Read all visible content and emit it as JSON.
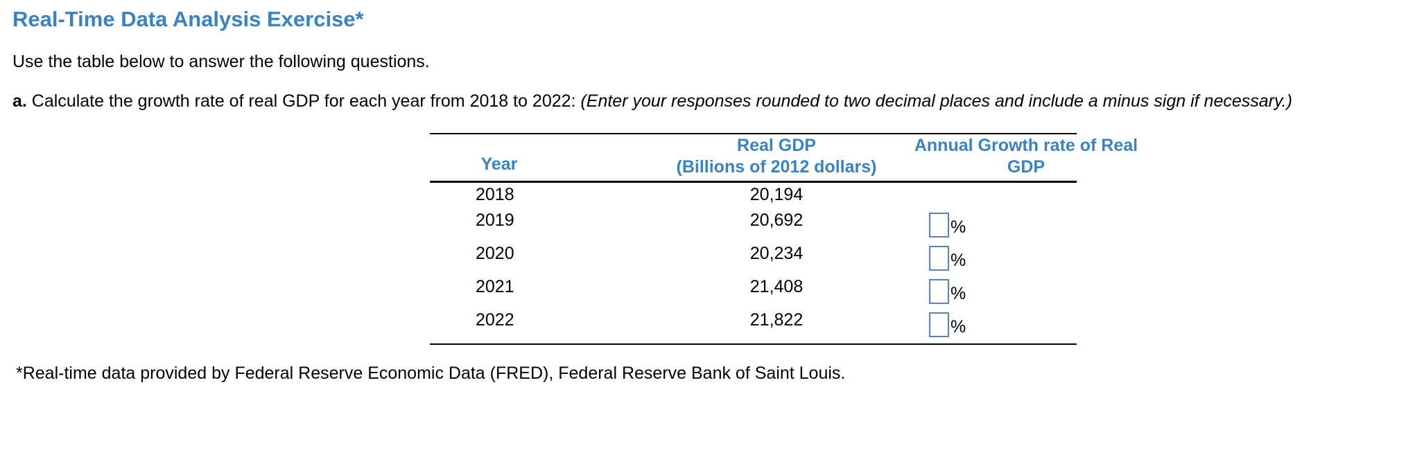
{
  "title": "Real-Time Data Analysis Exercise*",
  "intro": "Use the table below to answer the following questions.",
  "question": {
    "letter": "a.",
    "text": " Calculate the growth rate of real GDP for each year from 2018 to 2022: ",
    "hint": "(Enter your responses rounded to two decimal places and include a minus sign if necessary.)"
  },
  "table": {
    "headers": {
      "year": "Year",
      "gdp_line1": "Real GDP",
      "gdp_line2": "(Billions of 2012 dollars)",
      "growth_line1": "Annual Growth rate of Real",
      "growth_line2": "GDP"
    },
    "rows": [
      {
        "year": "2018",
        "gdp": "20,194"
      },
      {
        "year": "2019",
        "gdp": "20,692",
        "answer_value": "",
        "unit": "%"
      },
      {
        "year": "2020",
        "gdp": "20,234",
        "answer_value": "",
        "unit": "%"
      },
      {
        "year": "2021",
        "gdp": "21,408",
        "answer_value": "",
        "unit": "%"
      },
      {
        "year": "2022",
        "gdp": "21,822",
        "answer_value": "",
        "unit": "%"
      }
    ]
  },
  "footnote": "*Real-time data provided by Federal Reserve Economic Data (FRED), Federal Reserve Bank of Saint Louis.",
  "colors": {
    "accent": "#3a82c2",
    "input_border": "#5b7fc0",
    "text": "#000000"
  }
}
